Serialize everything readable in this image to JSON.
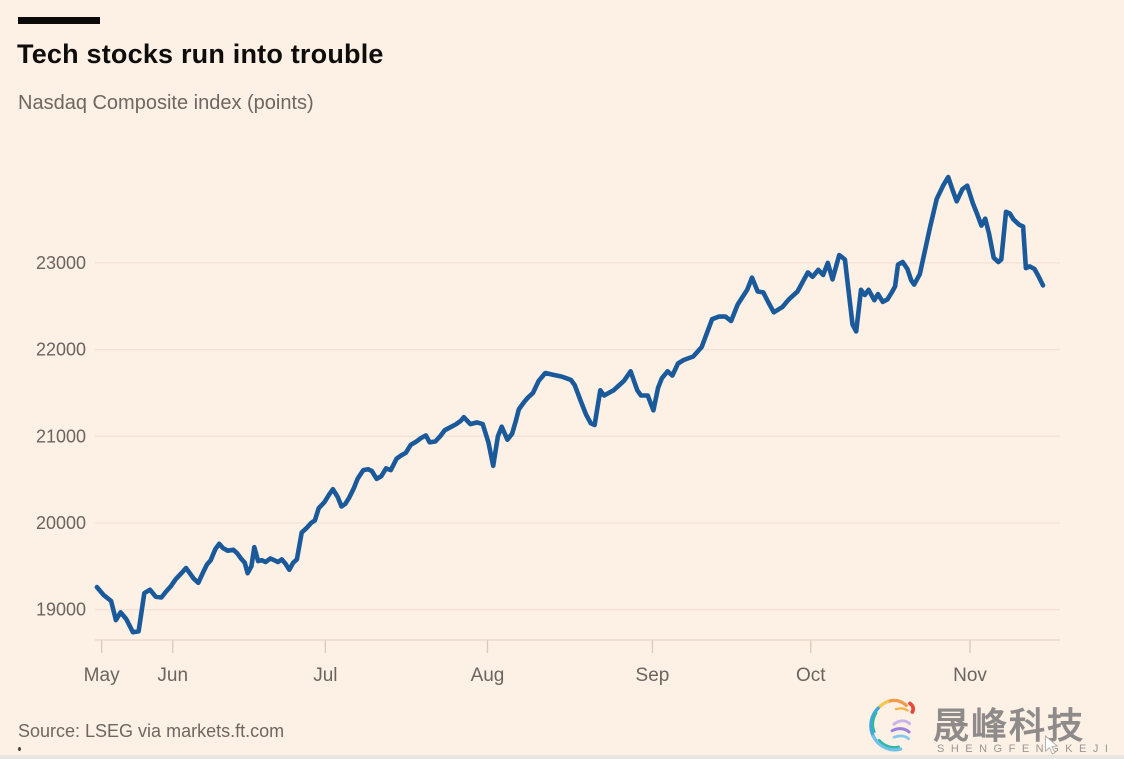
{
  "header": {
    "title": "Tech stocks run into trouble",
    "subtitle": "Nasdaq Composite index (points)"
  },
  "footer": {
    "source": "Source: LSEG via markets.ft.com"
  },
  "watermark": {
    "logo_icon": "shengfeng-rainbow-swirl",
    "name_cn": "晟峰科技",
    "name_en": "SHENGFENGKEJI"
  },
  "colors": {
    "background": "#FDF0E5",
    "line": "#1A5A9B",
    "grid": "#F2E2D3",
    "axis": "#E9D7C5",
    "tick": "#DCC9B8",
    "label": "#6B6560",
    "title": "#0F0D0B"
  },
  "chart_data": {
    "type": "line",
    "title": "Tech stocks run into trouble",
    "subtitle": "Nasdaq Composite index (points)",
    "series_name": "Nasdaq Composite index",
    "x_unit": "percent along time axis (mid-May to mid-Nov)",
    "x_ticks": [
      {
        "label": "May",
        "pct": 0.7
      },
      {
        "label": "Jun",
        "pct": 8.2
      },
      {
        "label": "Jul",
        "pct": 24.3
      },
      {
        "label": "Aug",
        "pct": 41.4
      },
      {
        "label": "Sep",
        "pct": 58.8
      },
      {
        "label": "Oct",
        "pct": 75.5
      },
      {
        "label": "Nov",
        "pct": 92.3
      }
    ],
    "y_ticks": [
      19000,
      20000,
      21000,
      22000,
      23000
    ],
    "ylim": [
      18650,
      24360
    ],
    "grid": "horizontal",
    "legend": "none",
    "points": [
      [
        0.2,
        19260
      ],
      [
        0.9,
        19170
      ],
      [
        1.7,
        19100
      ],
      [
        2.2,
        18880
      ],
      [
        2.7,
        18970
      ],
      [
        3.3,
        18890
      ],
      [
        4.0,
        18740
      ],
      [
        4.6,
        18750
      ],
      [
        5.2,
        19190
      ],
      [
        5.8,
        19230
      ],
      [
        6.4,
        19150
      ],
      [
        7.0,
        19140
      ],
      [
        7.5,
        19210
      ],
      [
        8.0,
        19270
      ],
      [
        8.5,
        19350
      ],
      [
        9.2,
        19430
      ],
      [
        9.6,
        19480
      ],
      [
        10.0,
        19420
      ],
      [
        10.4,
        19360
      ],
      [
        10.9,
        19310
      ],
      [
        11.4,
        19430
      ],
      [
        11.8,
        19520
      ],
      [
        12.2,
        19570
      ],
      [
        12.7,
        19700
      ],
      [
        13.1,
        19760
      ],
      [
        13.5,
        19710
      ],
      [
        14.0,
        19680
      ],
      [
        14.6,
        19690
      ],
      [
        15.0,
        19650
      ],
      [
        15.4,
        19590
      ],
      [
        15.8,
        19540
      ],
      [
        16.1,
        19420
      ],
      [
        16.5,
        19500
      ],
      [
        16.8,
        19720
      ],
      [
        17.2,
        19560
      ],
      [
        17.6,
        19570
      ],
      [
        18.0,
        19550
      ],
      [
        18.5,
        19590
      ],
      [
        18.9,
        19570
      ],
      [
        19.3,
        19550
      ],
      [
        19.7,
        19580
      ],
      [
        20.1,
        19530
      ],
      [
        20.5,
        19460
      ],
      [
        20.9,
        19540
      ],
      [
        21.3,
        19580
      ],
      [
        21.8,
        19890
      ],
      [
        22.3,
        19940
      ],
      [
        22.8,
        20000
      ],
      [
        23.2,
        20030
      ],
      [
        23.6,
        20170
      ],
      [
        24.2,
        20240
      ],
      [
        24.7,
        20330
      ],
      [
        25.1,
        20390
      ],
      [
        25.6,
        20300
      ],
      [
        26.0,
        20190
      ],
      [
        26.4,
        20220
      ],
      [
        26.8,
        20290
      ],
      [
        27.3,
        20400
      ],
      [
        27.7,
        20510
      ],
      [
        28.3,
        20610
      ],
      [
        28.8,
        20620
      ],
      [
        29.2,
        20600
      ],
      [
        29.7,
        20510
      ],
      [
        30.2,
        20540
      ],
      [
        30.7,
        20630
      ],
      [
        31.2,
        20610
      ],
      [
        31.8,
        20740
      ],
      [
        32.3,
        20780
      ],
      [
        32.8,
        20810
      ],
      [
        33.3,
        20900
      ],
      [
        33.9,
        20940
      ],
      [
        34.4,
        20980
      ],
      [
        34.9,
        21010
      ],
      [
        35.3,
        20930
      ],
      [
        35.9,
        20940
      ],
      [
        36.4,
        21000
      ],
      [
        36.9,
        21070
      ],
      [
        37.6,
        21110
      ],
      [
        38.1,
        21140
      ],
      [
        38.6,
        21180
      ],
      [
        38.9,
        21220
      ],
      [
        39.6,
        21140
      ],
      [
        40.3,
        21160
      ],
      [
        40.9,
        21140
      ],
      [
        41.5,
        20930
      ],
      [
        42.0,
        20660
      ],
      [
        42.5,
        21000
      ],
      [
        42.9,
        21110
      ],
      [
        43.5,
        20960
      ],
      [
        44.0,
        21030
      ],
      [
        44.4,
        21180
      ],
      [
        44.7,
        21310
      ],
      [
        45.3,
        21400
      ],
      [
        45.7,
        21450
      ],
      [
        46.2,
        21500
      ],
      [
        46.8,
        21640
      ],
      [
        47.5,
        21730
      ],
      [
        48.3,
        21710
      ],
      [
        49.2,
        21690
      ],
      [
        49.7,
        21670
      ],
      [
        50.2,
        21650
      ],
      [
        50.6,
        21590
      ],
      [
        51.3,
        21390
      ],
      [
        51.8,
        21250
      ],
      [
        52.3,
        21150
      ],
      [
        52.7,
        21130
      ],
      [
        53.3,
        21530
      ],
      [
        53.7,
        21470
      ],
      [
        54.2,
        21500
      ],
      [
        54.7,
        21530
      ],
      [
        55.2,
        21580
      ],
      [
        55.8,
        21640
      ],
      [
        56.5,
        21750
      ],
      [
        57.2,
        21530
      ],
      [
        57.6,
        21470
      ],
      [
        58.3,
        21470
      ],
      [
        58.9,
        21300
      ],
      [
        59.4,
        21560
      ],
      [
        59.8,
        21670
      ],
      [
        60.4,
        21750
      ],
      [
        60.9,
        21700
      ],
      [
        61.5,
        21840
      ],
      [
        62.1,
        21880
      ],
      [
        63.1,
        21920
      ],
      [
        64.0,
        22030
      ],
      [
        65.1,
        22350
      ],
      [
        65.8,
        22380
      ],
      [
        66.5,
        22380
      ],
      [
        67.1,
        22330
      ],
      [
        67.8,
        22520
      ],
      [
        68.8,
        22690
      ],
      [
        69.3,
        22830
      ],
      [
        69.9,
        22670
      ],
      [
        70.5,
        22660
      ],
      [
        71.0,
        22550
      ],
      [
        71.6,
        22430
      ],
      [
        72.5,
        22490
      ],
      [
        73.2,
        22580
      ],
      [
        74.1,
        22670
      ],
      [
        75.2,
        22890
      ],
      [
        75.7,
        22840
      ],
      [
        76.3,
        22920
      ],
      [
        76.8,
        22860
      ],
      [
        77.3,
        23000
      ],
      [
        77.8,
        22810
      ],
      [
        78.5,
        23090
      ],
      [
        79.1,
        23040
      ],
      [
        79.9,
        22290
      ],
      [
        80.3,
        22210
      ],
      [
        80.8,
        22690
      ],
      [
        81.2,
        22630
      ],
      [
        81.6,
        22690
      ],
      [
        82.2,
        22570
      ],
      [
        82.6,
        22640
      ],
      [
        83.1,
        22550
      ],
      [
        83.6,
        22580
      ],
      [
        84.1,
        22670
      ],
      [
        84.4,
        22730
      ],
      [
        84.7,
        22980
      ],
      [
        85.2,
        23010
      ],
      [
        85.7,
        22930
      ],
      [
        86.1,
        22800
      ],
      [
        86.4,
        22750
      ],
      [
        87.0,
        22870
      ],
      [
        87.4,
        23070
      ],
      [
        88.1,
        23420
      ],
      [
        88.8,
        23740
      ],
      [
        89.5,
        23900
      ],
      [
        90.0,
        23990
      ],
      [
        90.5,
        23830
      ],
      [
        90.9,
        23710
      ],
      [
        91.5,
        23850
      ],
      [
        92.0,
        23890
      ],
      [
        92.6,
        23690
      ],
      [
        93.0,
        23580
      ],
      [
        93.5,
        23430
      ],
      [
        93.9,
        23510
      ],
      [
        94.3,
        23340
      ],
      [
        94.8,
        23060
      ],
      [
        95.3,
        23010
      ],
      [
        95.6,
        23040
      ],
      [
        96.1,
        23590
      ],
      [
        96.5,
        23570
      ],
      [
        96.9,
        23500
      ],
      [
        97.5,
        23440
      ],
      [
        97.9,
        23420
      ],
      [
        98.2,
        22940
      ],
      [
        98.6,
        22960
      ],
      [
        99.1,
        22930
      ],
      [
        99.5,
        22850
      ],
      [
        100.0,
        22740
      ]
    ]
  }
}
